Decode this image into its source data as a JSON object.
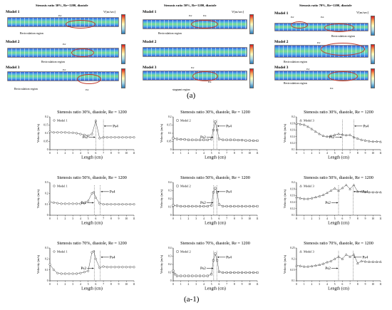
{
  "top_panel": {
    "sims": [
      {
        "title": "Stenosis ratio 30%, Re=1200, diastole",
        "vunit": "V[m/sec]",
        "model_labels": [
          "Model 1",
          "Model 2",
          "Model 3"
        ],
        "annotations": [
          "Recirculation region",
          "Recirculation region",
          "Recirculation region"
        ],
        "points": [
          "Ps2",
          "Ps4"
        ]
      },
      {
        "title": "Stenosis ratio 50%, Re=1200, diastole",
        "vunit": "V[m/sec]",
        "model_labels": [
          "Model 1",
          "Model 2",
          "Model 3"
        ],
        "annotations": [
          "Recirculation region",
          "stagnant region"
        ],
        "points": [
          "Ps2",
          "Ps4"
        ]
      },
      {
        "title": "Stenosis ratio 70%, Re=1200, diastole",
        "vunit": "V[m/sec]",
        "model_labels": [
          "Model 1",
          "Model 2",
          "Model 3"
        ],
        "annotations": [
          "Recirculation region",
          "Recirculation region",
          "Recirculation region"
        ],
        "points": [
          "Ps2",
          "Ps4"
        ]
      }
    ],
    "caption": "(a)"
  },
  "caption_a1": "(a-1)",
  "chart_data": [
    {
      "type": "line",
      "title": "Stenosis ratio 30%, diastole,  Re = 1200",
      "legend": "Model 1",
      "marker": "circle",
      "xlabel": "Length (cm)",
      "ylabel": "Velocity (m/s)",
      "xlim": [
        0,
        11
      ],
      "ylim": [
        0,
        0.2
      ],
      "xticks": [
        0,
        1,
        2,
        3,
        4,
        5,
        6,
        7,
        8,
        9,
        10,
        11
      ],
      "yticks": [
        0,
        0.05,
        0.1,
        0.15,
        0.2
      ],
      "ytick_labels": [
        "0",
        "0.05",
        "0.1",
        "0.15",
        "0.2"
      ],
      "annotations": [
        {
          "text": "Ps2",
          "x": 6.0
        },
        {
          "text": "Ps4",
          "x": 7.0
        }
      ],
      "x": [
        0,
        0.5,
        1,
        1.5,
        2,
        2.5,
        3,
        3.5,
        4,
        4.5,
        5,
        5.5,
        6,
        6.5,
        7,
        7.5,
        8,
        8.5,
        9,
        9.5,
        10,
        10.5,
        11
      ],
      "y": [
        0.11,
        0.105,
        0.105,
        0.105,
        0.105,
        0.104,
        0.103,
        0.1,
        0.095,
        0.09,
        0.085,
        0.095,
        0.175,
        0.07,
        0.075,
        0.075,
        0.075,
        0.075,
        0.075,
        0.075,
        0.075,
        0.075,
        0.075
      ]
    },
    {
      "type": "line",
      "title": "Stenosis ratio 30%, diastole,  Re = 1200",
      "legend": "Model 2",
      "marker": "square",
      "xlabel": "Length (cm)",
      "ylabel": "Velocity (m/s)",
      "xlim": [
        0,
        11
      ],
      "ylim": [
        0,
        0.2
      ],
      "xticks": [
        0,
        1,
        2,
        3,
        4,
        5,
        6,
        7,
        8,
        9,
        10,
        11
      ],
      "yticks": [
        0,
        0.05,
        0.1,
        0.15,
        0.2
      ],
      "ytick_labels": [
        "0",
        "0.05",
        "0.1",
        "0.15",
        "0.2"
      ],
      "annotations": [
        {
          "text": "Ps2",
          "x": 5.3
        },
        {
          "text": "Ps4",
          "x": 5.7
        }
      ],
      "x": [
        0,
        0.5,
        1,
        1.5,
        2,
        2.5,
        3,
        3.5,
        4,
        4.5,
        5,
        5.25,
        5.5,
        5.75,
        6,
        6.5,
        7,
        7.5,
        8,
        8.5,
        9,
        9.5,
        10,
        10.5,
        11
      ],
      "y": [
        0.07,
        0.065,
        0.063,
        0.062,
        0.06,
        0.06,
        0.06,
        0.06,
        0.06,
        0.06,
        0.065,
        0.12,
        0.17,
        0.12,
        0.065,
        0.06,
        0.06,
        0.06,
        0.06,
        0.058,
        0.058,
        0.056,
        0.056,
        0.055,
        0.055
      ]
    },
    {
      "type": "line",
      "title": "Stenosis ratio 30%, diastole,  Re = 1200",
      "legend": "Model 3",
      "marker": "triangle",
      "xlabel": "Length (cm)",
      "ylabel": "Velocity (m/s)",
      "xlim": [
        0,
        11
      ],
      "ylim": [
        0.1,
        0.2
      ],
      "xticks": [
        0,
        1,
        2,
        3,
        4,
        5,
        6,
        7,
        8,
        9,
        10,
        11
      ],
      "yticks": [
        0.1,
        0.12,
        0.14,
        0.16,
        0.18,
        0.2
      ],
      "ytick_labels": [
        "0.1",
        "0.12",
        "0.14",
        "0.16",
        "0.18",
        "0.2"
      ],
      "annotations": [
        {
          "text": "Ps2",
          "x": 6.0
        },
        {
          "text": "Ps4",
          "x": 7.5
        }
      ],
      "x": [
        0,
        0.5,
        1,
        1.5,
        2,
        2.5,
        3,
        3.5,
        4,
        4.5,
        5,
        5.5,
        6,
        6.5,
        7,
        7.5,
        8,
        8.5,
        9,
        9.5,
        10,
        10.5,
        11
      ],
      "y": [
        0.18,
        0.178,
        0.176,
        0.17,
        0.163,
        0.155,
        0.148,
        0.142,
        0.14,
        0.142,
        0.145,
        0.148,
        0.146,
        0.144,
        0.145,
        0.138,
        0.134,
        0.13,
        0.128,
        0.126,
        0.125,
        0.125,
        0.124
      ]
    },
    {
      "type": "line",
      "title": "Stenosis ratio 50%, diastole,  Re = 1200",
      "legend": "Model 1",
      "marker": "circle",
      "xlabel": "Length (cm)",
      "ylabel": "Velocity (m/s)",
      "xlim": [
        0,
        11
      ],
      "ylim": [
        0,
        0.3
      ],
      "xticks": [
        0,
        1,
        2,
        3,
        4,
        5,
        6,
        7,
        8,
        9,
        10,
        11
      ],
      "yticks": [
        0,
        0.1,
        0.2,
        0.3
      ],
      "ytick_labels": [
        "0",
        "0.1",
        "0.2",
        "0.3"
      ],
      "annotations": [
        {
          "text": "Ps2",
          "x": 5.8
        },
        {
          "text": "Ps4",
          "x": 6.6
        }
      ],
      "x": [
        0,
        0.5,
        1,
        1.5,
        2,
        2.5,
        3,
        3.5,
        4,
        4.5,
        5,
        5.5,
        5.75,
        6,
        6.5,
        7,
        7.5,
        8,
        8.5,
        9,
        9.5,
        10,
        10.5,
        11
      ],
      "y": [
        0.12,
        0.115,
        0.11,
        0.105,
        0.105,
        0.105,
        0.105,
        0.105,
        0.105,
        0.11,
        0.13,
        0.2,
        0.21,
        0.16,
        0.11,
        0.1,
        0.1,
        0.1,
        0.1,
        0.1,
        0.1,
        0.1,
        0.1,
        0.1
      ]
    },
    {
      "type": "line",
      "title": "Stenosis ratio 50%, diastole,  Re = 1200",
      "legend": "Model 2",
      "marker": "square",
      "xlabel": "Length (cm)",
      "ylabel": "Velocity (m/s)",
      "xlim": [
        0,
        11
      ],
      "ylim": [
        0,
        0.4
      ],
      "xticks": [
        0,
        1,
        2,
        3,
        4,
        5,
        6,
        7,
        8,
        9,
        10,
        11
      ],
      "yticks": [
        0,
        0.1,
        0.2,
        0.3,
        0.4
      ],
      "ytick_labels": [
        "0",
        "0.1",
        "0.2",
        "0.3",
        "0.4"
      ],
      "annotations": [
        {
          "text": "Ps2",
          "x": 5.3
        },
        {
          "text": "Ps4",
          "x": 5.7
        }
      ],
      "x": [
        0,
        0.5,
        1,
        1.5,
        2,
        2.5,
        3,
        3.5,
        4,
        4.5,
        5,
        5.25,
        5.5,
        5.75,
        6,
        6.5,
        7,
        7.5,
        8,
        8.5,
        9,
        9.5,
        10,
        10.5,
        11
      ],
      "y": [
        0.12,
        0.115,
        0.11,
        0.11,
        0.11,
        0.11,
        0.11,
        0.11,
        0.11,
        0.11,
        0.12,
        0.28,
        0.33,
        0.28,
        0.13,
        0.11,
        0.11,
        0.11,
        0.11,
        0.11,
        0.11,
        0.11,
        0.11,
        0.11,
        0.11
      ]
    },
    {
      "type": "line",
      "title": "Stenosis ratio 50%, diastole,  Re = 1200",
      "legend": "Model 3",
      "marker": "triangle",
      "xlabel": "Length (cm)",
      "ylabel": "Velocity (m/s)",
      "xlim": [
        0,
        11
      ],
      "ylim": [
        0.1,
        0.2
      ],
      "xticks": [
        0,
        1,
        2,
        3,
        4,
        5,
        6,
        7,
        8,
        9,
        10,
        11
      ],
      "yticks": [
        0.1,
        0.12,
        0.14,
        0.16,
        0.18,
        0.2
      ],
      "ytick_labels": [
        "0.1",
        "0.12",
        "0.14",
        "0.16",
        "0.18",
        "0.2"
      ],
      "annotations": [
        {
          "text": "Ps2",
          "x": 5.5
        },
        {
          "text": "Ps4",
          "x": 7.4
        }
      ],
      "x": [
        0,
        0.5,
        1,
        1.5,
        2,
        2.5,
        3,
        3.5,
        4,
        4.5,
        5,
        5.5,
        6,
        6.5,
        7,
        7.5,
        8,
        8.5,
        9,
        9.5,
        10,
        10.5,
        11
      ],
      "y": [
        0.155,
        0.152,
        0.15,
        0.15,
        0.152,
        0.155,
        0.158,
        0.162,
        0.168,
        0.175,
        0.182,
        0.175,
        0.183,
        0.192,
        0.18,
        0.192,
        0.172,
        0.172,
        0.171,
        0.17,
        0.17,
        0.17,
        0.17
      ]
    },
    {
      "type": "line",
      "title": "Stenosis ratio 70%, diastole,  Re = 1200",
      "legend": "Model 1",
      "marker": "circle",
      "xlabel": "Length (cm)",
      "ylabel": "Velocity (m/s)",
      "xlim": [
        0,
        11
      ],
      "ylim": [
        0,
        0.3
      ],
      "xticks": [
        0,
        1,
        2,
        3,
        4,
        5,
        6,
        7,
        8,
        9,
        10,
        11
      ],
      "yticks": [
        0,
        0.1,
        0.2,
        0.3
      ],
      "ytick_labels": [
        "0",
        "0.1",
        "0.2",
        "0.3"
      ],
      "annotations": [
        {
          "text": "Ps2",
          "x": 5.8
        },
        {
          "text": "Ps4",
          "x": 6.6
        }
      ],
      "x": [
        0,
        0.5,
        1,
        1.5,
        2,
        2.5,
        3,
        3.5,
        4,
        4.5,
        5,
        5.5,
        5.75,
        6,
        6.5,
        7,
        7.5,
        8,
        8.5,
        9,
        9.5,
        10,
        10.5,
        11
      ],
      "y": [
        0.15,
        0.1,
        0.07,
        0.065,
        0.065,
        0.065,
        0.065,
        0.065,
        0.07,
        0.08,
        0.09,
        0.26,
        0.27,
        0.2,
        0.12,
        0.13,
        0.125,
        0.125,
        0.125,
        0.125,
        0.125,
        0.125,
        0.125,
        0.125
      ]
    },
    {
      "type": "line",
      "title": "Stenosis ratio 70%, diastole,  Re = 1200",
      "legend": "Model 2",
      "marker": "square",
      "xlabel": "Length (cm)",
      "ylabel": "Velocity (m/s)",
      "xlim": [
        0,
        11
      ],
      "ylim": [
        0,
        0.4
      ],
      "xticks": [
        0,
        1,
        2,
        3,
        4,
        5,
        6,
        7,
        8,
        9,
        10,
        11
      ],
      "yticks": [
        0,
        0.1,
        0.2,
        0.3,
        0.4
      ],
      "ytick_labels": [
        "0",
        "0.1",
        "0.2",
        "0.3",
        "0.4"
      ],
      "annotations": [
        {
          "text": "Ps2",
          "x": 5.3
        },
        {
          "text": "Ps4",
          "x": 5.7
        }
      ],
      "x": [
        0,
        0.25,
        0.5,
        1,
        1.5,
        2,
        2.5,
        3,
        3.5,
        4,
        4.5,
        5,
        5.25,
        5.5,
        5.75,
        6,
        6.5,
        7,
        7.5,
        8,
        8.5,
        9,
        9.5,
        10,
        10.5,
        11
      ],
      "y": [
        0.12,
        0.08,
        0.06,
        0.06,
        0.06,
        0.06,
        0.06,
        0.06,
        0.06,
        0.06,
        0.06,
        0.08,
        0.25,
        0.33,
        0.25,
        0.11,
        0.1,
        0.1,
        0.1,
        0.1,
        0.1,
        0.1,
        0.1,
        0.1,
        0.1,
        0.1
      ]
    },
    {
      "type": "line",
      "title": "Stenosis ratio 70%, diastole,  Re = 1200",
      "legend": "Model 3",
      "marker": "triangle",
      "xlabel": "Length (cm)",
      "ylabel": "Velocity (m/s)",
      "xlim": [
        0,
        11
      ],
      "ylim": [
        0.1,
        0.25
      ],
      "xticks": [
        0,
        1,
        2,
        3,
        4,
        5,
        6,
        7,
        8,
        9,
        10,
        11
      ],
      "yticks": [
        0.1,
        0.15,
        0.2,
        0.25
      ],
      "ytick_labels": [
        "0.1",
        "0.15",
        "0.2",
        "0.25"
      ],
      "annotations": [
        {
          "text": "Ps2",
          "x": 5.5
        },
        {
          "text": "Ps4",
          "x": 7.4
        }
      ],
      "x": [
        0,
        0.5,
        1,
        1.5,
        2,
        2.5,
        3,
        3.5,
        4,
        4.5,
        5,
        5.5,
        6,
        6.5,
        7,
        7.5,
        8,
        8.5,
        9,
        9.5,
        10,
        10.5,
        11
      ],
      "y": [
        0.17,
        0.168,
        0.165,
        0.165,
        0.167,
        0.17,
        0.173,
        0.178,
        0.185,
        0.19,
        0.2,
        0.21,
        0.2,
        0.22,
        0.21,
        0.22,
        0.18,
        0.19,
        0.188,
        0.187,
        0.187,
        0.187,
        0.187
      ]
    }
  ]
}
